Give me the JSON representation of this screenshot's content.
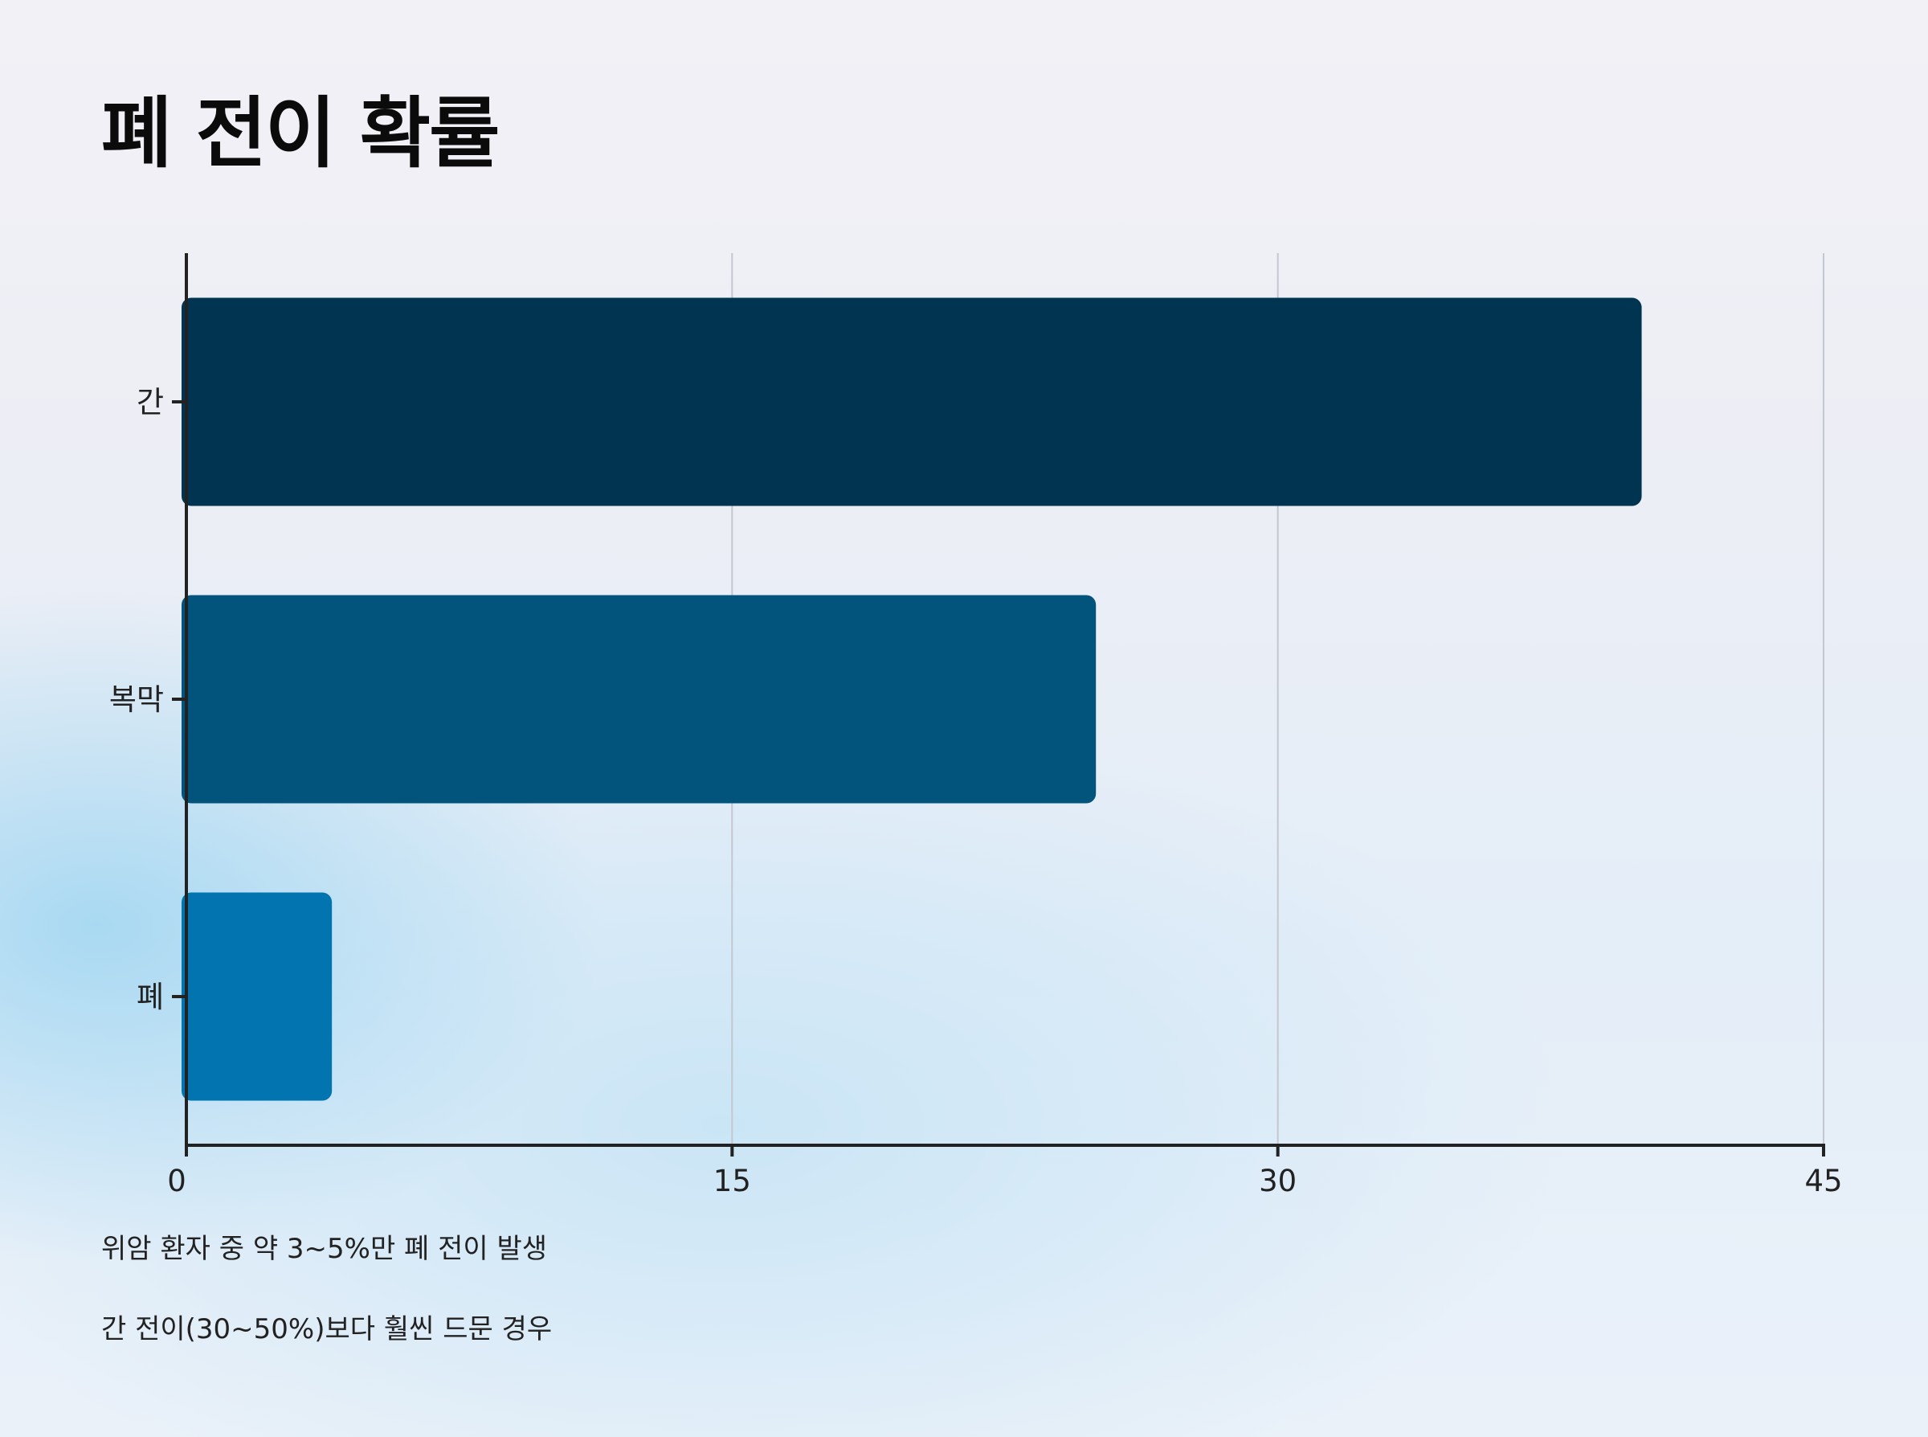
{
  "chart_data": {
    "type": "bar",
    "orientation": "horizontal",
    "title": "폐 전이 확률",
    "categories": [
      "간",
      "복막",
      "폐"
    ],
    "values": [
      40,
      25,
      4
    ],
    "colors": [
      "#003450",
      "#02547d",
      "#0275b1"
    ],
    "xlim": [
      0,
      45
    ],
    "xticks": [
      "0",
      "15",
      "30",
      "45"
    ],
    "xlabel": "",
    "ylabel": "",
    "grid": "vertical"
  },
  "notes": [
    "위암 환자 중 약 3~5%만 폐 전이 발생",
    "간 전이(30~50%)보다 훨씬 드문 경우"
  ]
}
